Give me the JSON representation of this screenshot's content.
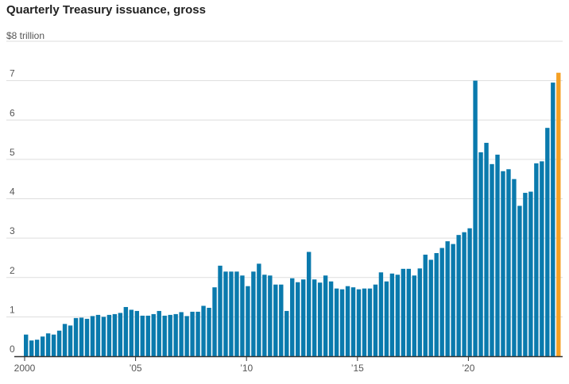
{
  "chart_data": {
    "type": "bar",
    "title": "Quarterly Treasury issuance, gross",
    "ylabel": "$8 trillion",
    "xlabel": "",
    "ylim": [
      0,
      8
    ],
    "y_ticks": [
      0,
      1,
      2,
      3,
      4,
      5,
      6,
      7
    ],
    "y_tick_labels": [
      "0",
      "1",
      "2",
      "3",
      "4",
      "5",
      "6",
      "7"
    ],
    "x_tick_labels": [
      "2000",
      "’05",
      "’10",
      "’15",
      "’20"
    ],
    "grid": true,
    "colors": {
      "bar": "#0a7aad",
      "highlight": "#f4a024",
      "grid": "#dddddd",
      "axis": "#333333"
    },
    "values": [
      0.55,
      0.4,
      0.42,
      0.5,
      0.58,
      0.55,
      0.65,
      0.82,
      0.78,
      0.97,
      0.98,
      0.95,
      1.02,
      1.05,
      1.0,
      1.05,
      1.07,
      1.1,
      1.25,
      1.18,
      1.15,
      1.03,
      1.03,
      1.07,
      1.15,
      1.03,
      1.05,
      1.07,
      1.12,
      1.02,
      1.13,
      1.13,
      1.28,
      1.23,
      1.75,
      2.3,
      2.15,
      2.15,
      2.15,
      2.05,
      1.78,
      2.15,
      2.35,
      2.07,
      2.05,
      1.82,
      1.82,
      1.15,
      1.98,
      1.88,
      1.95,
      2.65,
      1.95,
      1.87,
      2.05,
      1.9,
      1.72,
      1.7,
      1.78,
      1.75,
      1.7,
      1.72,
      1.72,
      1.82,
      2.13,
      1.9,
      2.1,
      2.07,
      2.22,
      2.22,
      2.05,
      2.23,
      2.58,
      2.45,
      2.62,
      2.75,
      2.92,
      2.85,
      3.08,
      3.15,
      3.25,
      7.0,
      5.18,
      5.42,
      4.88,
      5.12,
      4.7,
      4.75,
      4.5,
      3.82,
      4.15,
      4.18,
      4.9,
      4.95,
      5.8,
      6.95,
      7.2
    ],
    "highlight_last": true
  }
}
